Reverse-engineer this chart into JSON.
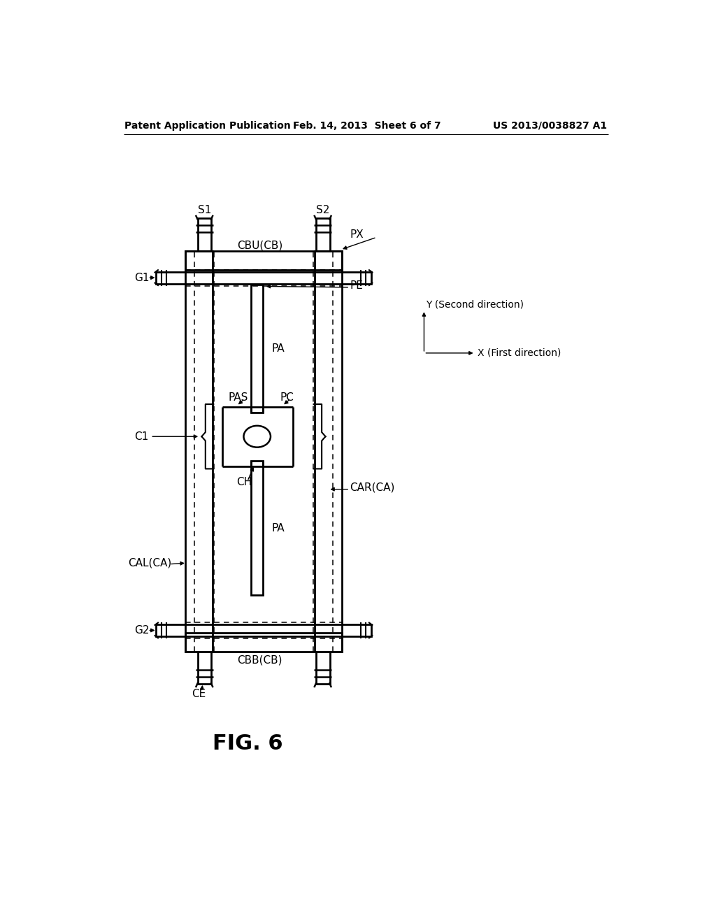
{
  "bg_color": "#ffffff",
  "header_left": "Patent Application Publication",
  "header_center": "Feb. 14, 2013  Sheet 6 of 7",
  "header_right": "US 2013/0038827 A1",
  "fig_label": "FIG. 6"
}
